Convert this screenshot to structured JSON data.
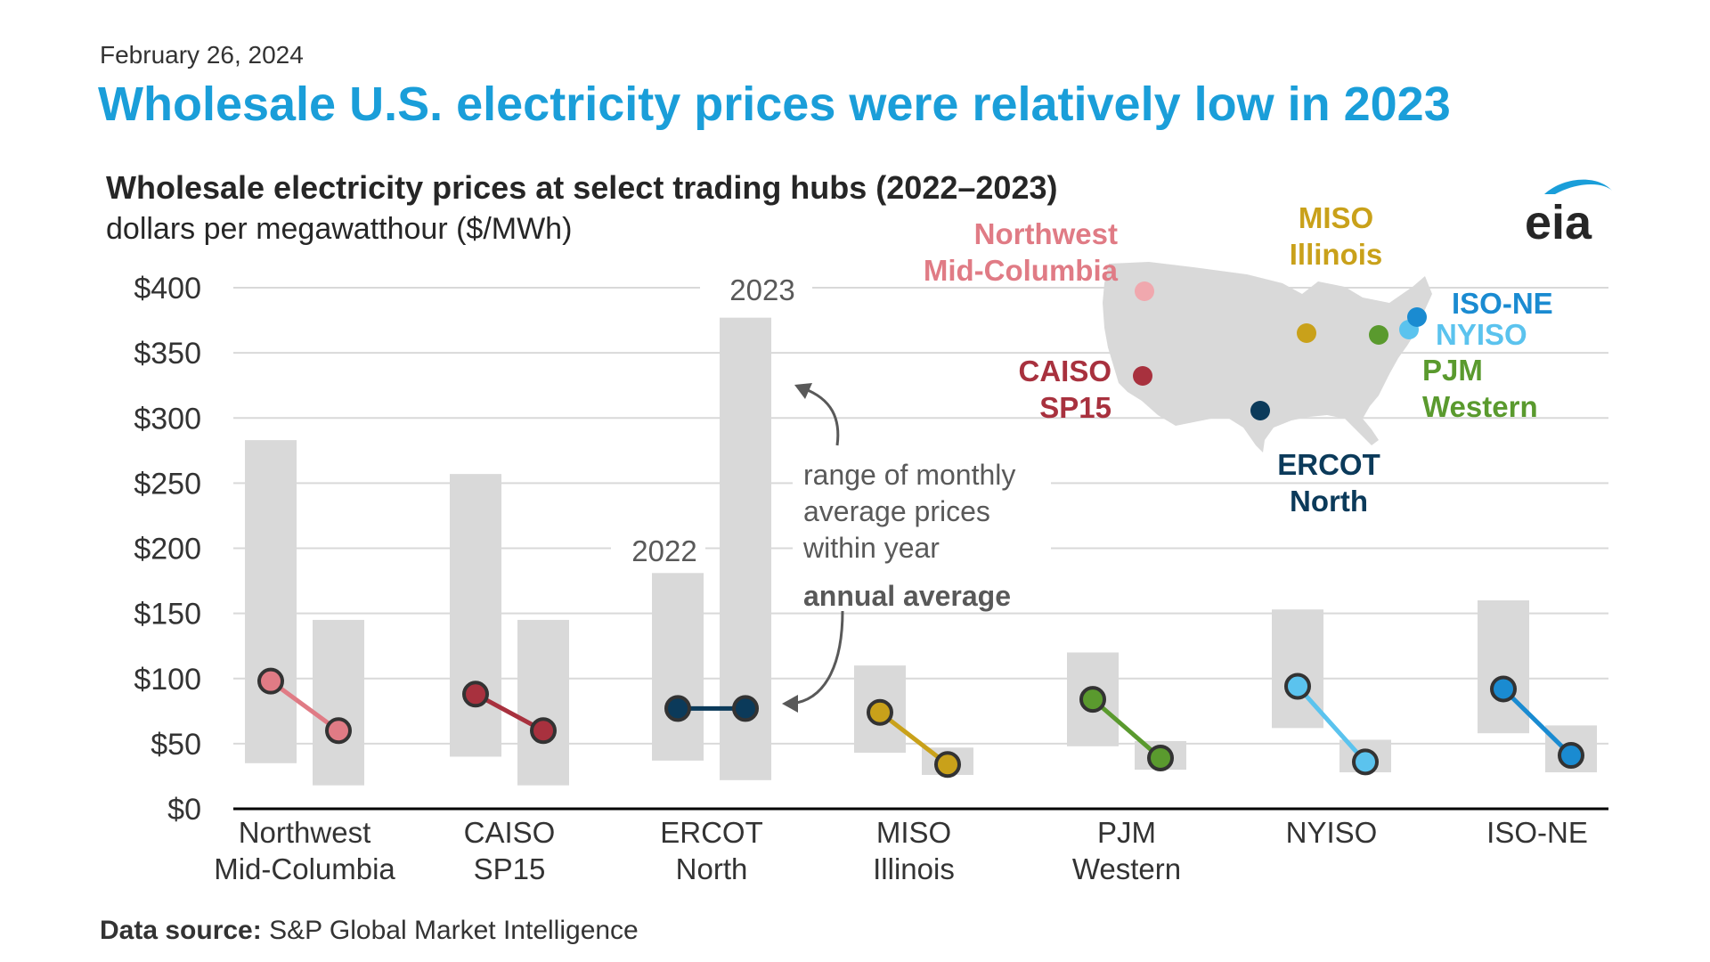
{
  "header": {
    "date": "February 26, 2024",
    "headline": "Wholesale U.S. electricity prices were relatively low in 2023"
  },
  "footer": {
    "source_label": "Data source:",
    "source_text": "S&P Global Market Intelligence"
  },
  "logo": {
    "text": "eia",
    "icon": "eia-swoosh-logo"
  },
  "colors": {
    "range_bar": "#d9d9d9",
    "grid": "#d9d9d9",
    "axis": "#000000",
    "tick_text": "#333333",
    "annotation_text": "#595959",
    "arrow": "#595959",
    "map_fill": "#d9d9d9",
    "logo_blue": "#1a9ed9"
  },
  "chart_data": {
    "type": "dumbbell-range",
    "title": "Wholesale electricity prices at select trading hubs (2022–2023)",
    "subtitle": "dollars per megawatthour ($/MWh)",
    "ylim": [
      0,
      400
    ],
    "yticks": [
      0,
      50,
      100,
      150,
      200,
      250,
      300,
      350,
      400
    ],
    "ytick_labels": [
      "$0",
      "$50",
      "$100",
      "$150",
      "$200",
      "$250",
      "$300",
      "$350",
      "$400"
    ],
    "grid": true,
    "years": [
      "2022",
      "2023"
    ],
    "series": [
      {
        "name": "Northwest Mid-Columbia",
        "label_lines": [
          "Northwest",
          "Mid-Columbia"
        ],
        "color": "#e07b85",
        "map_color": "#f0a8ae",
        "range_2022": [
          35,
          283
        ],
        "range_2023": [
          18,
          145
        ],
        "avg_2022": 98,
        "avg_2023": 60
      },
      {
        "name": "CAISO SP15",
        "label_lines": [
          "CAISO",
          "SP15"
        ],
        "color": "#a8313e",
        "map_color": "#a8313e",
        "range_2022": [
          40,
          257
        ],
        "range_2023": [
          18,
          145
        ],
        "avg_2022": 88,
        "avg_2023": 60
      },
      {
        "name": "ERCOT North",
        "label_lines": [
          "ERCOT",
          "North"
        ],
        "color": "#0b3a5a",
        "map_color": "#0b3a5a",
        "range_2022": [
          37,
          181
        ],
        "range_2023": [
          22,
          377
        ],
        "avg_2022": 77,
        "avg_2023": 77
      },
      {
        "name": "MISO Illinois",
        "label_lines": [
          "MISO",
          "Illinois"
        ],
        "color": "#c9a11a",
        "map_color": "#c9a11a",
        "range_2022": [
          43,
          110
        ],
        "range_2023": [
          26,
          47
        ],
        "avg_2022": 74,
        "avg_2023": 34
      },
      {
        "name": "PJM Western",
        "label_lines": [
          "PJM",
          "Western"
        ],
        "color": "#5a9a2e",
        "map_color": "#5a9a2e",
        "range_2022": [
          48,
          120
        ],
        "range_2023": [
          30,
          52
        ],
        "avg_2022": 84,
        "avg_2023": 39
      },
      {
        "name": "NYISO",
        "label_lines": [
          "NYISO"
        ],
        "color": "#5bc3ee",
        "map_color": "#5bc3ee",
        "range_2022": [
          62,
          153
        ],
        "range_2023": [
          28,
          53
        ],
        "avg_2022": 94,
        "avg_2023": 36
      },
      {
        "name": "ISO-NE",
        "label_lines": [
          "ISO-NE"
        ],
        "color": "#1a8bd1",
        "map_color": "#1a8bd1",
        "range_2022": [
          58,
          160
        ],
        "range_2023": [
          28,
          64
        ],
        "avg_2022": 92,
        "avg_2023": 41
      }
    ],
    "annotations": {
      "range_lines": [
        "range of monthly",
        "average prices",
        "within year"
      ],
      "average_label": "annual average",
      "year_2022_label": "2022",
      "year_2023_label": "2023"
    },
    "map_labels": [
      {
        "hub": "Northwest Mid-Columbia",
        "lines": [
          "Northwest",
          "Mid-Columbia"
        ],
        "color": "#e07b85"
      },
      {
        "hub": "MISO Illinois",
        "lines": [
          "MISO",
          "Illinois"
        ],
        "color": "#c9a11a"
      },
      {
        "hub": "ISO-NE",
        "lines": [
          "ISO-NE"
        ],
        "color": "#1a8bd1"
      },
      {
        "hub": "NYISO",
        "lines": [
          "NYISO"
        ],
        "color": "#5bc3ee"
      },
      {
        "hub": "PJM Western",
        "lines": [
          "PJM",
          "Western"
        ],
        "color": "#5a9a2e"
      },
      {
        "hub": "CAISO SP15",
        "lines": [
          "CAISO",
          "SP15"
        ],
        "color": "#a8313e"
      },
      {
        "hub": "ERCOT North",
        "lines": [
          "ERCOT",
          "North"
        ],
        "color": "#0b3a5a"
      }
    ]
  }
}
